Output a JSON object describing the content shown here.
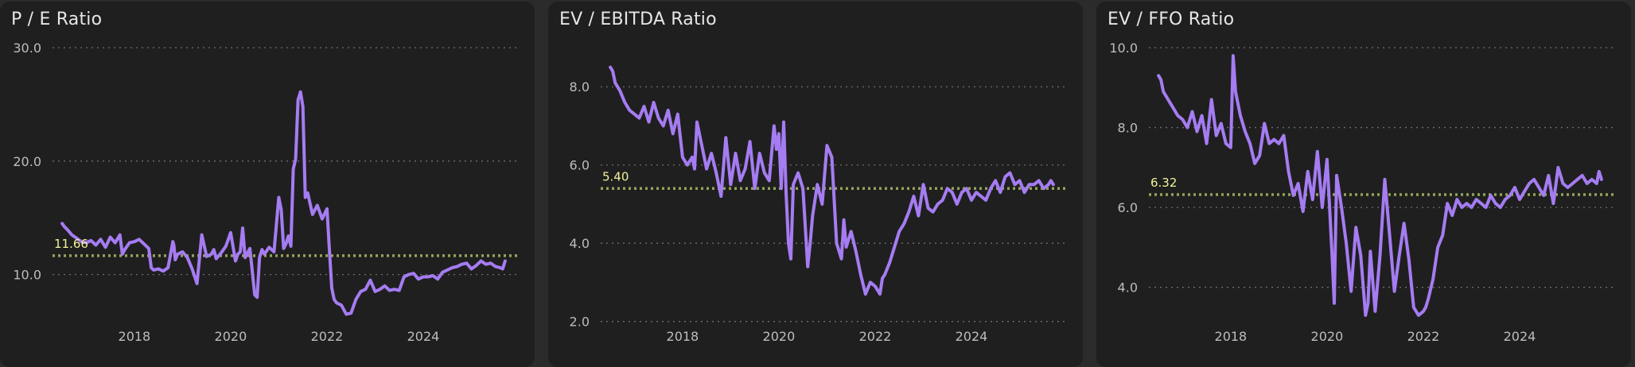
{
  "colors": {
    "background": "#2b2b2b",
    "panel": "#1f1f1f",
    "line": "#a57cf2",
    "average": "#94a35a",
    "average_label": "#f2f29a",
    "grid": "#6e6e6e",
    "text": "#bdbdbd"
  },
  "chart_data": [
    {
      "type": "line",
      "title": "P / E Ratio",
      "ylim": [
        5.0,
        30.0
      ],
      "yticks": [
        10.0,
        20.0,
        30.0
      ],
      "ytick_labels": [
        "10.0",
        "20.0",
        "30.0"
      ],
      "xlim": [
        2016.3,
        2025.95
      ],
      "xticks": [
        2018,
        2020,
        2022,
        2024
      ],
      "xtick_labels": [
        "2018",
        "2020",
        "2022",
        "2024"
      ],
      "average": 11.66,
      "average_label": "11.66",
      "grid": true,
      "series": [
        {
          "x": [
            2016.5,
            2016.55,
            2016.6,
            2016.7,
            2016.8,
            2016.9,
            2017.0,
            2017.1,
            2017.2,
            2017.3,
            2017.4,
            2017.5,
            2017.6,
            2017.7,
            2017.75,
            2017.8,
            2017.9,
            2018.0,
            2018.1,
            2018.25,
            2018.3,
            2018.35,
            2018.4,
            2018.5,
            2018.6,
            2018.7,
            2018.8,
            2018.82,
            2018.85,
            2018.9,
            2019.0,
            2019.1,
            2019.2,
            2019.3,
            2019.4,
            2019.5,
            2019.6,
            2019.65,
            2019.7,
            2019.8,
            2019.9,
            2020.0,
            2020.1,
            2020.15,
            2020.2,
            2020.25,
            2020.3,
            2020.4,
            2020.5,
            2020.55,
            2020.6,
            2020.65,
            2020.7,
            2020.8,
            2020.9,
            2021.0,
            2021.05,
            2021.1,
            2021.15,
            2021.2,
            2021.25,
            2021.3,
            2021.35,
            2021.4,
            2021.45,
            2021.5,
            2021.55,
            2021.6,
            2021.7,
            2021.8,
            2021.9,
            2022.0,
            2022.05,
            2022.1,
            2022.15,
            2022.2,
            2022.3,
            2022.4,
            2022.5,
            2022.6,
            2022.7,
            2022.8,
            2022.9,
            2023.0,
            2023.1,
            2023.2,
            2023.3,
            2023.4,
            2023.5,
            2023.6,
            2023.7,
            2023.8,
            2023.9,
            2024.0,
            2024.1,
            2024.2,
            2024.3,
            2024.4,
            2024.5,
            2024.6,
            2024.7,
            2024.8,
            2024.9,
            2025.0,
            2025.1,
            2025.2,
            2025.3,
            2025.4,
            2025.5,
            2025.6,
            2025.65,
            2025.7
          ],
          "y": [
            14.5,
            14.2,
            14.0,
            13.5,
            13.2,
            12.9,
            12.8,
            13.0,
            12.6,
            13.1,
            12.4,
            13.3,
            12.8,
            13.5,
            11.8,
            12.2,
            12.8,
            12.9,
            13.1,
            12.5,
            12.3,
            10.6,
            10.4,
            10.5,
            10.3,
            10.6,
            12.9,
            12.6,
            11.3,
            11.8,
            12.0,
            11.5,
            10.5,
            9.2,
            13.5,
            11.6,
            11.8,
            12.2,
            11.4,
            11.9,
            12.5,
            13.7,
            11.2,
            11.8,
            12.0,
            14.1,
            11.5,
            12.3,
            8.2,
            8.0,
            11.5,
            12.2,
            11.8,
            12.4,
            12.0,
            16.8,
            15.7,
            12.3,
            12.7,
            13.4,
            12.5,
            19.3,
            20.2,
            25.4,
            26.1,
            24.8,
            16.8,
            17.2,
            15.3,
            16.1,
            14.9,
            15.8,
            12.2,
            8.8,
            7.8,
            7.5,
            7.3,
            6.5,
            6.6,
            7.8,
            8.5,
            8.7,
            9.5,
            8.5,
            8.7,
            9.0,
            8.6,
            8.7,
            8.6,
            9.8,
            10.0,
            10.1,
            9.6,
            9.8,
            9.8,
            9.9,
            9.6,
            10.2,
            10.4,
            10.6,
            10.7,
            10.9,
            11.0,
            10.5,
            10.8,
            11.2,
            10.9,
            11.0,
            10.7,
            10.6,
            10.5,
            11.2
          ]
        }
      ]
    },
    {
      "type": "line",
      "title": "EV / EBITDA Ratio",
      "ylim": [
        1.75,
        9.0
      ],
      "yticks": [
        2.0,
        4.0,
        6.0,
        8.0
      ],
      "ytick_labels": [
        "2.0",
        "4.0",
        "6.0",
        "8.0"
      ],
      "xlim": [
        2016.3,
        2025.95
      ],
      "xticks": [
        2018,
        2020,
        2022,
        2024
      ],
      "xtick_labels": [
        "2018",
        "2020",
        "2022",
        "2024"
      ],
      "average": 5.4,
      "average_label": "5.40",
      "grid": true,
      "series": [
        {
          "x": [
            2016.5,
            2016.55,
            2016.6,
            2016.7,
            2016.8,
            2016.9,
            2017.0,
            2017.1,
            2017.2,
            2017.3,
            2017.4,
            2017.5,
            2017.6,
            2017.7,
            2017.8,
            2017.9,
            2018.0,
            2018.1,
            2018.2,
            2018.25,
            2018.3,
            2018.4,
            2018.5,
            2018.6,
            2018.7,
            2018.8,
            2018.9,
            2019.0,
            2019.1,
            2019.2,
            2019.3,
            2019.4,
            2019.5,
            2019.6,
            2019.7,
            2019.8,
            2019.9,
            2019.95,
            2020.0,
            2020.05,
            2020.1,
            2020.15,
            2020.2,
            2020.25,
            2020.3,
            2020.4,
            2020.5,
            2020.6,
            2020.65,
            2020.7,
            2020.8,
            2020.9,
            2021.0,
            2021.1,
            2021.2,
            2021.3,
            2021.35,
            2021.4,
            2021.5,
            2021.6,
            2021.7,
            2021.8,
            2021.9,
            2022.0,
            2022.1,
            2022.15,
            2022.2,
            2022.3,
            2022.4,
            2022.5,
            2022.6,
            2022.7,
            2022.8,
            2022.9,
            2023.0,
            2023.1,
            2023.2,
            2023.3,
            2023.4,
            2023.5,
            2023.6,
            2023.7,
            2023.8,
            2023.9,
            2024.0,
            2024.1,
            2024.2,
            2024.3,
            2024.4,
            2024.5,
            2024.6,
            2024.7,
            2024.8,
            2024.9,
            2025.0,
            2025.1,
            2025.2,
            2025.3,
            2025.4,
            2025.5,
            2025.6,
            2025.65,
            2025.7
          ],
          "y": [
            8.5,
            8.4,
            8.1,
            7.9,
            7.6,
            7.4,
            7.3,
            7.2,
            7.5,
            7.1,
            7.6,
            7.2,
            7.0,
            7.4,
            6.8,
            7.3,
            6.2,
            6.0,
            6.2,
            5.9,
            7.1,
            6.5,
            5.9,
            6.3,
            5.8,
            5.2,
            6.7,
            5.5,
            6.3,
            5.6,
            5.9,
            6.6,
            5.4,
            6.3,
            5.8,
            5.6,
            7.0,
            6.4,
            6.8,
            5.4,
            7.1,
            5.3,
            4.0,
            3.6,
            5.5,
            5.8,
            5.4,
            3.4,
            4.0,
            4.7,
            5.5,
            5.0,
            6.5,
            6.2,
            4.0,
            3.6,
            4.6,
            3.9,
            4.3,
            3.8,
            3.2,
            2.7,
            3.0,
            2.9,
            2.7,
            3.1,
            3.2,
            3.5,
            3.9,
            4.3,
            4.5,
            4.8,
            5.2,
            4.7,
            5.5,
            4.9,
            4.8,
            5.0,
            5.1,
            5.4,
            5.3,
            5.0,
            5.3,
            5.4,
            5.1,
            5.3,
            5.2,
            5.1,
            5.4,
            5.6,
            5.3,
            5.7,
            5.8,
            5.5,
            5.6,
            5.3,
            5.5,
            5.5,
            5.6,
            5.4,
            5.5,
            5.6,
            5.5
          ]
        }
      ]
    },
    {
      "type": "line",
      "title": "EV / FFO Ratio",
      "ylim": [
        2.9,
        10.0
      ],
      "yticks": [
        4.0,
        6.0,
        8.0,
        10.0
      ],
      "ytick_labels": [
        "4.0",
        "6.0",
        "8.0",
        "10.0"
      ],
      "xlim": [
        2016.3,
        2025.95
      ],
      "xticks": [
        2018,
        2020,
        2022,
        2024
      ],
      "xtick_labels": [
        "2018",
        "2020",
        "2022",
        "2024"
      ],
      "average": 6.32,
      "average_label": "6.32",
      "grid": true,
      "series": [
        {
          "x": [
            2016.5,
            2016.55,
            2016.6,
            2016.7,
            2016.8,
            2016.9,
            2017.0,
            2017.1,
            2017.2,
            2017.3,
            2017.4,
            2017.5,
            2017.6,
            2017.7,
            2017.8,
            2017.9,
            2018.0,
            2018.05,
            2018.1,
            2018.2,
            2018.3,
            2018.4,
            2018.5,
            2018.6,
            2018.7,
            2018.8,
            2018.9,
            2019.0,
            2019.1,
            2019.2,
            2019.3,
            2019.4,
            2019.5,
            2019.6,
            2019.7,
            2019.8,
            2019.9,
            2020.0,
            2020.05,
            2020.1,
            2020.15,
            2020.2,
            2020.3,
            2020.4,
            2020.5,
            2020.6,
            2020.7,
            2020.8,
            2020.85,
            2020.9,
            2021.0,
            2021.1,
            2021.2,
            2021.3,
            2021.4,
            2021.5,
            2021.6,
            2021.7,
            2021.8,
            2021.9,
            2022.0,
            2022.05,
            2022.1,
            2022.2,
            2022.3,
            2022.4,
            2022.5,
            2022.6,
            2022.7,
            2022.8,
            2022.9,
            2023.0,
            2023.1,
            2023.2,
            2023.3,
            2023.4,
            2023.5,
            2023.6,
            2023.7,
            2023.8,
            2023.9,
            2024.0,
            2024.1,
            2024.2,
            2024.3,
            2024.4,
            2024.5,
            2024.6,
            2024.7,
            2024.8,
            2024.9,
            2025.0,
            2025.1,
            2025.2,
            2025.3,
            2025.4,
            2025.5,
            2025.6,
            2025.65,
            2025.7
          ],
          "y": [
            9.3,
            9.2,
            8.9,
            8.7,
            8.5,
            8.3,
            8.2,
            8.0,
            8.4,
            7.9,
            8.3,
            7.6,
            8.7,
            7.8,
            8.1,
            7.6,
            7.5,
            9.8,
            8.9,
            8.3,
            7.9,
            7.6,
            7.1,
            7.3,
            8.1,
            7.6,
            7.7,
            7.6,
            7.8,
            6.9,
            6.3,
            6.6,
            5.9,
            6.9,
            6.2,
            7.4,
            6.0,
            7.2,
            6.1,
            4.9,
            3.6,
            6.8,
            6.0,
            5.1,
            3.9,
            5.5,
            4.8,
            3.3,
            3.6,
            4.9,
            3.4,
            4.8,
            6.7,
            5.3,
            3.9,
            4.8,
            5.6,
            4.7,
            3.5,
            3.3,
            3.4,
            3.5,
            3.7,
            4.2,
            5.0,
            5.3,
            6.1,
            5.8,
            6.2,
            6.0,
            6.1,
            6.0,
            6.2,
            6.1,
            6.0,
            6.3,
            6.1,
            6.0,
            6.2,
            6.3,
            6.5,
            6.2,
            6.4,
            6.6,
            6.7,
            6.5,
            6.3,
            6.8,
            6.1,
            7.0,
            6.6,
            6.5,
            6.6,
            6.7,
            6.8,
            6.6,
            6.7,
            6.6,
            6.9,
            6.7
          ]
        }
      ]
    }
  ]
}
